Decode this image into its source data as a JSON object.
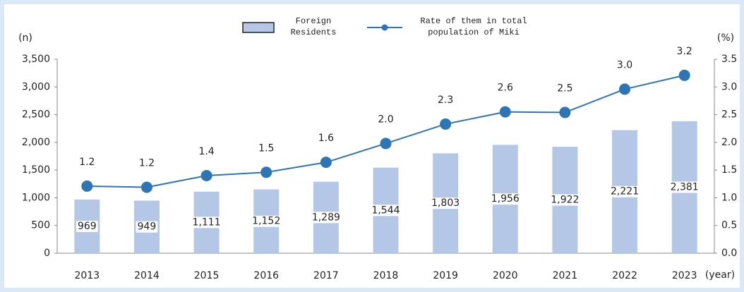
{
  "chart_data": {
    "type": "bar_line",
    "y_label": "(n)",
    "y2_label": "(%)",
    "x_label": "(year)",
    "categories": [
      "2013",
      "2014",
      "2015",
      "2016",
      "2017",
      "2018",
      "2019",
      "2020",
      "2021",
      "2022",
      "2023"
    ],
    "series": [
      {
        "name": "Foreign Residents",
        "type": "bar",
        "color": "#b4c7e7",
        "values": [
          969,
          949,
          1111,
          1152,
          1289,
          1544,
          1803,
          1956,
          1922,
          2221,
          2381
        ],
        "value_labels": [
          "969",
          "949",
          "1,111",
          "1,152",
          "1,289",
          "1,544",
          "1,803",
          "1,956",
          "1,922",
          "2,221",
          "2,381"
        ]
      },
      {
        "name": "Rate of them in total population of Miki",
        "type": "line",
        "axis": "y2",
        "color": "#2e75b6",
        "values": [
          1.21,
          1.19,
          1.4,
          1.46,
          1.64,
          1.98,
          2.33,
          2.55,
          2.54,
          2.96,
          3.21
        ],
        "value_labels": [
          "1.2",
          "1.2",
          "1.4",
          "1.5",
          "1.6",
          "2.0",
          "2.3",
          "2.6",
          "2.5",
          "3.0",
          "3.2"
        ]
      }
    ],
    "ylim": [
      0,
      3500
    ],
    "yticks": [
      0,
      500,
      {
        "value": 1000,
        "label": "1,000"
      },
      {
        "value": 1500,
        "label": "1,500"
      },
      {
        "value": 2000,
        "label": "2,000"
      },
      {
        "value": 2500,
        "label": "2,500"
      },
      {
        "value": 3000,
        "label": "3,000"
      },
      {
        "value": 3500,
        "label": "3,500"
      }
    ],
    "y2lim": [
      0,
      3.5
    ],
    "y2ticks": [
      {
        "value": 0,
        "label": "0.0"
      },
      0.5,
      {
        "value": 1,
        "label": "1.0"
      },
      1.5,
      {
        "value": 2,
        "label": "2.0"
      },
      2.5,
      {
        "value": 3,
        "label": "3.0"
      },
      3.5
    ],
    "grid": false
  }
}
